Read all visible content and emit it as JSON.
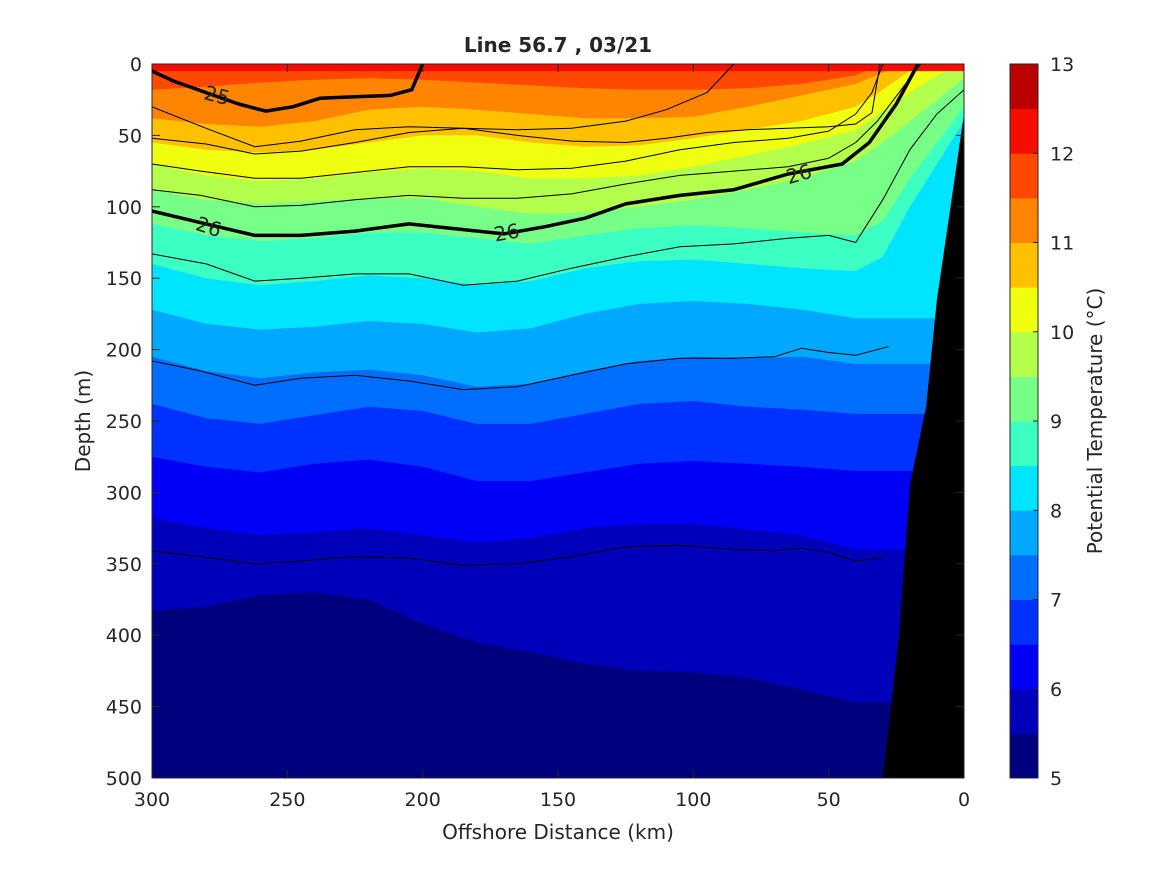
{
  "chart_data": {
    "type": "contourf",
    "title": "Line 56.7 , 03/21",
    "xlabel": "Offshore Distance (km)",
    "ylabel": "Depth (m)",
    "colorbar_label": "Potential Temperature (°C)",
    "xlim": [
      0,
      300
    ],
    "x_reversed": true,
    "xticks": [
      300,
      250,
      200,
      150,
      100,
      50,
      0
    ],
    "ylim": [
      0,
      500
    ],
    "y_reversed": true,
    "yticks": [
      0,
      50,
      100,
      150,
      200,
      250,
      300,
      350,
      400,
      450,
      500
    ],
    "colorbar": {
      "range": [
        5,
        13
      ],
      "ticks": [
        5,
        6,
        7,
        8,
        9,
        10,
        11,
        12,
        13
      ],
      "levels": [
        5,
        5.5,
        6,
        6.5,
        7,
        7.5,
        8,
        8.5,
        9,
        9.5,
        10,
        10.5,
        11,
        11.5,
        12,
        12.5,
        13
      ],
      "colors": [
        "#00007f",
        "#0000bb",
        "#0000f6",
        "#0032ff",
        "#006eff",
        "#00a9ff",
        "#00e5ff",
        "#3cffc3",
        "#78ff87",
        "#b4ff4b",
        "#f0ff0f",
        "#ffc000",
        "#ff8400",
        "#ff4900",
        "#f60d00",
        "#bb0000"
      ]
    },
    "isotherms_depth_m": [
      {
        "t": 12.0,
        "x": [
          300,
          280,
          260,
          240,
          220,
          200,
          180,
          160,
          140,
          120,
          100,
          80,
          60,
          40,
          30,
          20,
          10,
          0
        ],
        "d": [
          5,
          5,
          5,
          5,
          5,
          5,
          5,
          5,
          5,
          5,
          5,
          5,
          5,
          5,
          5,
          5,
          5,
          5
        ]
      },
      {
        "t": 11.5,
        "x": [
          300,
          280,
          260,
          240,
          220,
          200,
          180,
          160,
          140,
          120,
          100,
          80,
          60,
          40,
          30,
          20,
          10,
          0
        ],
        "d": [
          18,
          16,
          13,
          11,
          10,
          11,
          13,
          15,
          17,
          18,
          18,
          17,
          14,
          8,
          0,
          0,
          0,
          0
        ]
      },
      {
        "t": 11.0,
        "x": [
          300,
          280,
          260,
          240,
          220,
          200,
          180,
          160,
          140,
          120,
          100,
          80,
          60,
          40,
          30,
          20,
          10,
          0
        ],
        "d": [
          38,
          42,
          44,
          40,
          32,
          30,
          32,
          35,
          38,
          38,
          37,
          30,
          22,
          14,
          6,
          0,
          0,
          0
        ]
      },
      {
        "t": 10.5,
        "x": [
          300,
          280,
          260,
          240,
          220,
          200,
          180,
          160,
          140,
          120,
          100,
          80,
          60,
          40,
          30,
          20,
          10,
          0
        ],
        "d": [
          55,
          60,
          62,
          60,
          55,
          50,
          50,
          55,
          58,
          57,
          52,
          46,
          40,
          30,
          18,
          5,
          0,
          0
        ]
      },
      {
        "t": 10.0,
        "x": [
          300,
          280,
          260,
          240,
          220,
          200,
          180,
          160,
          140,
          120,
          100,
          80,
          60,
          40,
          30,
          20,
          10,
          0
        ],
        "d": [
          70,
          78,
          82,
          80,
          76,
          73,
          75,
          80,
          80,
          78,
          72,
          64,
          56,
          46,
          33,
          20,
          8,
          0
        ]
      },
      {
        "t": 9.5,
        "x": [
          300,
          280,
          260,
          240,
          220,
          200,
          180,
          160,
          140,
          120,
          100,
          80,
          60,
          40,
          30,
          20,
          10,
          0
        ],
        "d": [
          88,
          95,
          98,
          96,
          94,
          94,
          100,
          105,
          104,
          100,
          95,
          88,
          80,
          68,
          55,
          40,
          25,
          10
        ]
      },
      {
        "t": 9.0,
        "x": [
          300,
          280,
          260,
          240,
          220,
          200,
          180,
          160,
          140,
          120,
          100,
          80,
          60,
          40,
          30,
          20,
          10,
          0
        ],
        "d": [
          112,
          120,
          124,
          122,
          118,
          118,
          122,
          126,
          120,
          115,
          113,
          115,
          118,
          120,
          110,
          80,
          55,
          30
        ]
      },
      {
        "t": 8.5,
        "x": [
          300,
          280,
          260,
          240,
          220,
          200,
          180,
          160,
          140,
          120,
          100,
          80,
          60,
          40,
          30,
          20,
          10,
          0
        ],
        "d": [
          140,
          150,
          155,
          152,
          148,
          150,
          155,
          152,
          143,
          138,
          137,
          140,
          143,
          145,
          135,
          100,
          70,
          40
        ]
      },
      {
        "t": 8.0,
        "x": [
          300,
          280,
          260,
          240,
          220,
          200,
          180,
          160,
          140,
          120,
          100,
          80,
          60,
          40,
          30,
          20,
          10,
          0
        ],
        "d": [
          172,
          182,
          186,
          184,
          180,
          182,
          188,
          185,
          175,
          168,
          166,
          168,
          172,
          178,
          178,
          178,
          178,
          178
        ]
      },
      {
        "t": 7.5,
        "x": [
          300,
          280,
          260,
          240,
          220,
          200,
          180,
          160,
          140,
          120,
          100,
          80,
          60,
          40,
          30,
          20,
          10,
          0
        ],
        "d": [
          205,
          215,
          220,
          216,
          214,
          218,
          226,
          224,
          215,
          208,
          205,
          206,
          205,
          210,
          210,
          210,
          210,
          210
        ]
      },
      {
        "t": 7.0,
        "x": [
          300,
          280,
          260,
          240,
          220,
          200,
          180,
          160,
          140,
          120,
          100,
          80,
          60,
          40,
          30,
          20,
          10,
          0
        ],
        "d": [
          238,
          248,
          252,
          246,
          240,
          243,
          252,
          252,
          245,
          238,
          236,
          240,
          242,
          245,
          245,
          245,
          245,
          245
        ]
      },
      {
        "t": 6.5,
        "x": [
          300,
          280,
          260,
          240,
          220,
          200,
          180,
          160,
          140,
          120,
          100,
          80,
          60,
          40,
          30,
          20,
          10,
          0
        ],
        "d": [
          275,
          282,
          286,
          280,
          277,
          282,
          292,
          292,
          286,
          280,
          278,
          280,
          282,
          285,
          285,
          285,
          285,
          285
        ]
      },
      {
        "t": 6.0,
        "x": [
          300,
          280,
          260,
          240,
          220,
          200,
          180,
          160,
          140,
          120,
          100,
          80,
          60,
          40,
          30,
          20,
          10,
          0
        ],
        "d": [
          318,
          325,
          330,
          328,
          325,
          330,
          335,
          332,
          325,
          322,
          322,
          326,
          330,
          340,
          340,
          340,
          340,
          340
        ]
      },
      {
        "t": 5.5,
        "x": [
          300,
          280,
          260,
          240,
          220,
          200,
          180,
          160,
          140,
          120,
          100,
          80,
          60,
          40,
          30,
          20,
          10,
          0
        ],
        "d": [
          383,
          380,
          372,
          370,
          375,
          392,
          405,
          412,
          420,
          425,
          426,
          430,
          438,
          447,
          447,
          447,
          447,
          447
        ]
      },
      {
        "t": 5.0,
        "x": [
          300,
          280,
          260,
          240,
          220,
          200,
          180,
          160,
          140,
          120,
          100,
          80,
          60,
          40,
          30,
          20,
          10,
          0
        ],
        "d": [
          485,
          465,
          455,
          446,
          440,
          460,
          485,
          498,
          500,
          500,
          500,
          500,
          500,
          500,
          500,
          500,
          500,
          500
        ]
      }
    ],
    "bathymetry_depth_m": {
      "x": [
        0,
        5,
        10,
        14,
        20,
        24,
        30,
        33
      ],
      "d": [
        35,
        100,
        165,
        240,
        295,
        400,
        700,
        500
      ]
    },
    "density_contours": [
      {
        "level": 25.0,
        "bold": true,
        "x": [
          300,
          292,
          280,
          268,
          258,
          248,
          238,
          225,
          212,
          204,
          200
        ],
        "d": [
          5,
          12,
          20,
          28,
          33,
          30,
          24,
          23,
          22,
          18,
          0
        ]
      },
      {
        "level": 25.0,
        "bold": false,
        "x": [
          300,
          280,
          262,
          245,
          225,
          205,
          185,
          165,
          145,
          125,
          110,
          95,
          85
        ],
        "d": [
          30,
          45,
          58,
          54,
          46,
          44,
          45,
          46,
          45,
          40,
          32,
          20,
          0
        ]
      },
      {
        "level": 25.0,
        "bold": false,
        "x": [
          300,
          280,
          262,
          245,
          225,
          205,
          185,
          165,
          145,
          125,
          110,
          95,
          80,
          65,
          50,
          40,
          34,
          31
        ],
        "d": [
          52,
          56,
          63,
          61,
          55,
          48,
          45,
          50,
          54,
          55,
          52,
          48,
          46,
          45,
          44,
          42,
          34,
          0
        ]
      },
      {
        "level": 25.5,
        "bold": false,
        "x": [
          300,
          282,
          262,
          245,
          225,
          205,
          185,
          165,
          145,
          125,
          105,
          85,
          65,
          50,
          40,
          34,
          30
        ],
        "d": [
          70,
          75,
          80,
          80,
          76,
          72,
          72,
          74,
          73,
          68,
          60,
          55,
          52,
          47,
          35,
          20,
          0
        ]
      },
      {
        "level": 25.5,
        "bold": false,
        "x": [
          300,
          282,
          262,
          245,
          225,
          205,
          185,
          165,
          145,
          125,
          105,
          85,
          65,
          50,
          40,
          32,
          24,
          16
        ],
        "d": [
          88,
          92,
          100,
          99,
          95,
          92,
          94,
          94,
          91,
          84,
          78,
          75,
          72,
          66,
          55,
          40,
          20,
          0
        ]
      },
      {
        "level": 26.0,
        "bold": true,
        "x": [
          300,
          280,
          262,
          245,
          225,
          205,
          185,
          170,
          155,
          140,
          125,
          105,
          85,
          65,
          45,
          35,
          25,
          17
        ],
        "d": [
          103,
          112,
          120,
          120,
          117,
          112,
          116,
          119,
          114,
          108,
          98,
          92,
          88,
          77,
          70,
          55,
          28,
          0
        ]
      },
      {
        "level": 26.2,
        "bold": false,
        "x": [
          300,
          280,
          262,
          245,
          225,
          205,
          185,
          165,
          145,
          125,
          105,
          85,
          65,
          50,
          40,
          30,
          20,
          10,
          0
        ],
        "d": [
          133,
          140,
          152,
          150,
          147,
          147,
          155,
          152,
          143,
          135,
          128,
          126,
          122,
          120,
          125,
          95,
          60,
          35,
          18
        ]
      },
      {
        "level": 26.4,
        "bold": false,
        "x": [
          300,
          282,
          262,
          245,
          225,
          205,
          185,
          165,
          145,
          125,
          105,
          85,
          70,
          60,
          50,
          40,
          28
        ],
        "d": [
          208,
          215,
          225,
          220,
          218,
          222,
          228,
          226,
          218,
          210,
          206,
          206,
          205,
          199,
          202,
          204,
          198
        ]
      },
      {
        "level": 26.6,
        "bold": false,
        "x": [
          300,
          282,
          262,
          245,
          225,
          205,
          185,
          165,
          145,
          125,
          105,
          85,
          70,
          60,
          50,
          40,
          30
        ],
        "d": [
          341,
          345,
          350,
          348,
          345,
          346,
          351,
          350,
          345,
          338,
          337,
          340,
          341,
          339,
          342,
          348,
          346
        ]
      }
    ],
    "contour_labels": [
      {
        "text": "25",
        "x": 276,
        "d": 22,
        "angle": 15
      },
      {
        "text": "26",
        "x": 279,
        "d": 114,
        "angle": 18
      },
      {
        "text": "26",
        "x": 169,
        "d": 118,
        "angle": -10
      },
      {
        "text": "26",
        "x": 61,
        "d": 77,
        "angle": -16
      }
    ]
  }
}
